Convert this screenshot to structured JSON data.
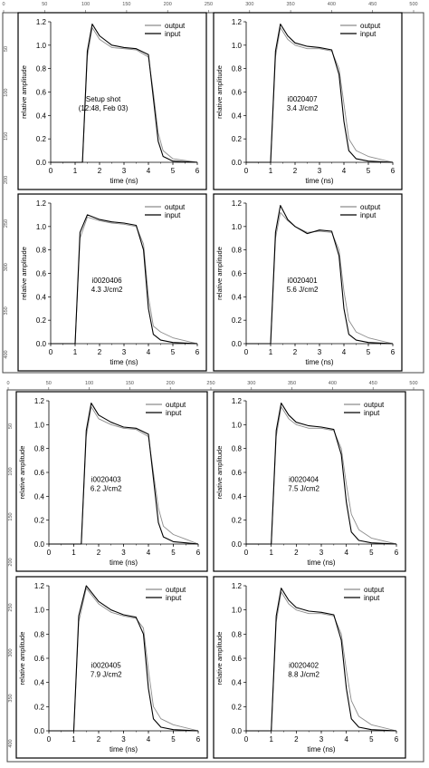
{
  "ruler": {
    "top_ticks": [
      "0",
      "50",
      "100",
      "150",
      "200",
      "250",
      "300",
      "350",
      "400",
      "450",
      "500"
    ],
    "left_ticks": [
      "50",
      "100",
      "150",
      "200",
      "250",
      "300",
      "350",
      "400"
    ]
  },
  "chart_data": [
    {
      "type": "line",
      "annotation": [
        "Setup shot",
        "(12:48, Feb 03)"
      ],
      "xlabel": "time (ns)",
      "ylabel": "relative amplitude",
      "xlim": [
        0,
        6
      ],
      "ylim": [
        0,
        1.2
      ],
      "xticks": [
        "0",
        "1",
        "2",
        "3",
        "4",
        "5",
        "6"
      ],
      "yticks": [
        "0.0",
        "0.2",
        "0.4",
        "0.6",
        "0.8",
        "1.0",
        "1.2"
      ],
      "legend": [
        "output",
        "input"
      ],
      "legend_position": "top-right",
      "series": [
        {
          "name": "output",
          "x": [
            0,
            1.3,
            1.5,
            1.7,
            2.0,
            2.5,
            3.0,
            3.5,
            4.0,
            4.2,
            4.4,
            4.6,
            5.0,
            6.0
          ],
          "y": [
            0,
            0,
            0.9,
            1.15,
            1.05,
            0.98,
            0.97,
            0.96,
            0.9,
            0.6,
            0.25,
            0.1,
            0.03,
            0
          ]
        },
        {
          "name": "input",
          "x": [
            0,
            1.3,
            1.5,
            1.7,
            2.0,
            2.5,
            3.0,
            3.5,
            4.0,
            4.2,
            4.4,
            4.6,
            5.0,
            6.0
          ],
          "y": [
            0,
            0,
            0.95,
            1.18,
            1.08,
            1.0,
            0.98,
            0.97,
            0.92,
            0.55,
            0.18,
            0.05,
            0.01,
            0
          ]
        }
      ]
    },
    {
      "type": "line",
      "annotation": [
        "i0020407",
        "3.4 J/cm2"
      ],
      "xlabel": "time (ns)",
      "ylabel": "relative amplitude",
      "xlim": [
        0,
        6
      ],
      "ylim": [
        0,
        1.2
      ],
      "xticks": [
        "0",
        "1",
        "2",
        "3",
        "4",
        "5",
        "6"
      ],
      "yticks": [
        "0.0",
        "0.2",
        "0.4",
        "0.6",
        "0.8",
        "1.0",
        "1.2"
      ],
      "legend": [
        "output",
        "input"
      ],
      "legend_position": "top-right",
      "series": [
        {
          "name": "output",
          "x": [
            0,
            1.0,
            1.2,
            1.4,
            1.7,
            2.0,
            2.5,
            3.0,
            3.5,
            3.8,
            4.0,
            4.2,
            4.5,
            5.0,
            6.0
          ],
          "y": [
            0,
            0,
            0.9,
            1.15,
            1.05,
            1.0,
            0.97,
            0.97,
            0.95,
            0.8,
            0.5,
            0.2,
            0.1,
            0.05,
            0
          ]
        },
        {
          "name": "input",
          "x": [
            0,
            1.0,
            1.2,
            1.4,
            1.7,
            2.0,
            2.5,
            3.0,
            3.5,
            3.8,
            4.0,
            4.2,
            4.5,
            5.0,
            6.0
          ],
          "y": [
            0,
            0,
            0.95,
            1.18,
            1.08,
            1.02,
            0.99,
            0.98,
            0.96,
            0.75,
            0.35,
            0.1,
            0.03,
            0.01,
            0
          ]
        }
      ]
    },
    {
      "type": "line",
      "annotation": [
        "i0020406",
        "4.3 J/cm2"
      ],
      "xlabel": "time (ns)",
      "ylabel": "relative amplitude",
      "xlim": [
        0,
        6
      ],
      "ylim": [
        0,
        1.2
      ],
      "xticks": [
        "0",
        "1",
        "2",
        "3",
        "4",
        "5",
        "6"
      ],
      "yticks": [
        "0.0",
        "0.2",
        "0.4",
        "0.6",
        "0.8",
        "1.0",
        "1.2"
      ],
      "legend": [
        "output",
        "input"
      ],
      "legend_position": "top-right",
      "series": [
        {
          "name": "output",
          "x": [
            0,
            1.0,
            1.2,
            1.5,
            2.0,
            2.5,
            3.0,
            3.5,
            3.8,
            4.0,
            4.2,
            4.5,
            5.0,
            6.0
          ],
          "y": [
            0,
            0,
            0.9,
            1.08,
            1.05,
            1.03,
            1.02,
            1.0,
            0.85,
            0.4,
            0.15,
            0.1,
            0.05,
            0
          ]
        },
        {
          "name": "input",
          "x": [
            0,
            1.0,
            1.2,
            1.5,
            2.0,
            2.5,
            3.0,
            3.5,
            3.8,
            4.0,
            4.2,
            4.5,
            5.0,
            6.0
          ],
          "y": [
            0,
            0,
            0.95,
            1.1,
            1.06,
            1.04,
            1.03,
            1.01,
            0.8,
            0.3,
            0.08,
            0.03,
            0.01,
            0
          ]
        }
      ]
    },
    {
      "type": "line",
      "annotation": [
        "i0020401",
        "5.6 J/cm2"
      ],
      "xlabel": "time (ns)",
      "ylabel": "relative amplitude",
      "xlim": [
        0,
        6
      ],
      "ylim": [
        0,
        1.2
      ],
      "xticks": [
        "0",
        "1",
        "2",
        "3",
        "4",
        "5",
        "6"
      ],
      "yticks": [
        "0.0",
        "0.2",
        "0.4",
        "0.6",
        "0.8",
        "1.0",
        "1.2"
      ],
      "legend": [
        "output",
        "input"
      ],
      "legend_position": "top-right",
      "series": [
        {
          "name": "output",
          "x": [
            0,
            1.0,
            1.2,
            1.4,
            1.7,
            2.0,
            2.5,
            3.0,
            3.5,
            3.8,
            4.0,
            4.2,
            4.5,
            5.0,
            6.0
          ],
          "y": [
            0,
            0,
            0.9,
            1.12,
            1.05,
            1.0,
            0.95,
            0.96,
            0.95,
            0.8,
            0.45,
            0.2,
            0.1,
            0.05,
            0
          ]
        },
        {
          "name": "input",
          "x": [
            0,
            1.0,
            1.2,
            1.4,
            1.7,
            2.0,
            2.5,
            3.0,
            3.5,
            3.8,
            4.0,
            4.2,
            4.5,
            5.0,
            6.0
          ],
          "y": [
            0,
            0,
            0.95,
            1.18,
            1.06,
            1.0,
            0.94,
            0.97,
            0.96,
            0.75,
            0.3,
            0.08,
            0.03,
            0.01,
            0
          ]
        }
      ]
    },
    {
      "type": "line",
      "annotation": [
        "i0020403",
        "6.2 J/cm2"
      ],
      "xlabel": "time (ns)",
      "ylabel": "relative amplitude",
      "xlim": [
        0,
        6
      ],
      "ylim": [
        0,
        1.2
      ],
      "xticks": [
        "0",
        "1",
        "2",
        "3",
        "4",
        "5",
        "6"
      ],
      "yticks": [
        "0.0",
        "0.2",
        "0.4",
        "0.6",
        "0.8",
        "1.0",
        "1.2"
      ],
      "legend": [
        "output",
        "input"
      ],
      "legend_position": "top-right",
      "series": [
        {
          "name": "output",
          "x": [
            0,
            1.3,
            1.5,
            1.7,
            2.0,
            2.5,
            3.0,
            3.5,
            4.0,
            4.2,
            4.4,
            4.6,
            5.0,
            5.5,
            6.0
          ],
          "y": [
            0,
            0,
            0.9,
            1.15,
            1.05,
            1.0,
            0.97,
            0.96,
            0.9,
            0.6,
            0.3,
            0.15,
            0.08,
            0.04,
            0
          ]
        },
        {
          "name": "input",
          "x": [
            0,
            1.3,
            1.5,
            1.7,
            2.0,
            2.5,
            3.0,
            3.5,
            4.0,
            4.2,
            4.4,
            4.6,
            5.0,
            5.5,
            6.0
          ],
          "y": [
            0,
            0,
            0.95,
            1.18,
            1.08,
            1.02,
            0.98,
            0.97,
            0.92,
            0.55,
            0.18,
            0.06,
            0.02,
            0.01,
            0
          ]
        }
      ]
    },
    {
      "type": "line",
      "annotation": [
        "i0020404",
        "7.5 J/cm2"
      ],
      "xlabel": "time (ns)",
      "ylabel": "relative amplitude",
      "xlim": [
        0,
        6
      ],
      "ylim": [
        0,
        1.2
      ],
      "xticks": [
        "0",
        "1",
        "2",
        "3",
        "4",
        "5",
        "6"
      ],
      "yticks": [
        "0.0",
        "0.2",
        "0.4",
        "0.6",
        "0.8",
        "1.0",
        "1.2"
      ],
      "legend": [
        "output",
        "input"
      ],
      "legend_position": "top-right",
      "series": [
        {
          "name": "output",
          "x": [
            0,
            1.0,
            1.2,
            1.4,
            1.7,
            2.0,
            2.5,
            3.0,
            3.5,
            3.8,
            4.0,
            4.2,
            4.5,
            5.0,
            6.0
          ],
          "y": [
            0,
            0,
            0.9,
            1.15,
            1.05,
            1.0,
            0.97,
            0.97,
            0.95,
            0.8,
            0.5,
            0.25,
            0.12,
            0.05,
            0
          ]
        },
        {
          "name": "input",
          "x": [
            0,
            1.0,
            1.2,
            1.4,
            1.7,
            2.0,
            2.5,
            3.0,
            3.5,
            3.8,
            4.0,
            4.2,
            4.5,
            5.0,
            6.0
          ],
          "y": [
            0,
            0,
            0.95,
            1.18,
            1.08,
            1.02,
            0.99,
            0.98,
            0.96,
            0.75,
            0.35,
            0.1,
            0.03,
            0.01,
            0
          ]
        }
      ]
    },
    {
      "type": "line",
      "annotation": [
        "i0020405",
        "7.9 J/cm2"
      ],
      "xlabel": "time (ns)",
      "ylabel": "relative amplitude",
      "xlim": [
        0,
        6
      ],
      "ylim": [
        0,
        1.2
      ],
      "xticks": [
        "0",
        "1",
        "2",
        "3",
        "4",
        "5",
        "6"
      ],
      "yticks": [
        "0.0",
        "0.2",
        "0.4",
        "0.6",
        "0.8",
        "1.0",
        "1.2"
      ],
      "legend": [
        "output",
        "input"
      ],
      "legend_position": "top-right",
      "series": [
        {
          "name": "output",
          "x": [
            0,
            1.0,
            1.2,
            1.5,
            2.0,
            2.5,
            3.0,
            3.5,
            3.8,
            4.0,
            4.2,
            4.5,
            5.0,
            6.0
          ],
          "y": [
            0,
            0,
            0.9,
            1.18,
            1.05,
            0.98,
            0.95,
            0.93,
            0.85,
            0.5,
            0.2,
            0.1,
            0.05,
            0
          ]
        },
        {
          "name": "input",
          "x": [
            0,
            1.0,
            1.2,
            1.5,
            2.0,
            2.5,
            3.0,
            3.5,
            3.8,
            4.0,
            4.2,
            4.5,
            5.0,
            6.0
          ],
          "y": [
            0,
            0,
            0.95,
            1.2,
            1.07,
            1.0,
            0.96,
            0.94,
            0.8,
            0.35,
            0.1,
            0.03,
            0.01,
            0
          ]
        }
      ]
    },
    {
      "type": "line",
      "annotation": [
        "i0020402",
        "8.8 J/cm2"
      ],
      "xlabel": "time (ns)",
      "ylabel": "relative amplitude",
      "xlim": [
        0,
        6
      ],
      "ylim": [
        0,
        1.2
      ],
      "xticks": [
        "0",
        "1",
        "2",
        "3",
        "4",
        "5",
        "6"
      ],
      "yticks": [
        "0.0",
        "0.2",
        "0.4",
        "0.6",
        "0.8",
        "1.0",
        "1.2"
      ],
      "legend": [
        "output",
        "input"
      ],
      "legend_position": "top-right",
      "series": [
        {
          "name": "output",
          "x": [
            0,
            1.0,
            1.2,
            1.4,
            1.7,
            2.0,
            2.5,
            3.0,
            3.5,
            3.8,
            4.0,
            4.2,
            4.5,
            5.0,
            6.0
          ],
          "y": [
            0,
            0,
            0.9,
            1.15,
            1.05,
            1.0,
            0.97,
            0.97,
            0.95,
            0.8,
            0.5,
            0.25,
            0.12,
            0.05,
            0
          ]
        },
        {
          "name": "input",
          "x": [
            0,
            1.0,
            1.2,
            1.4,
            1.7,
            2.0,
            2.5,
            3.0,
            3.5,
            3.8,
            4.0,
            4.2,
            4.5,
            5.0,
            6.0
          ],
          "y": [
            0,
            0,
            0.95,
            1.18,
            1.08,
            1.02,
            0.99,
            0.98,
            0.96,
            0.75,
            0.35,
            0.1,
            0.03,
            0.01,
            0
          ]
        }
      ]
    }
  ],
  "colors": {
    "output": "#8c8c8c",
    "input": "#000000",
    "frame": "#000000",
    "ruler": "#555555"
  }
}
